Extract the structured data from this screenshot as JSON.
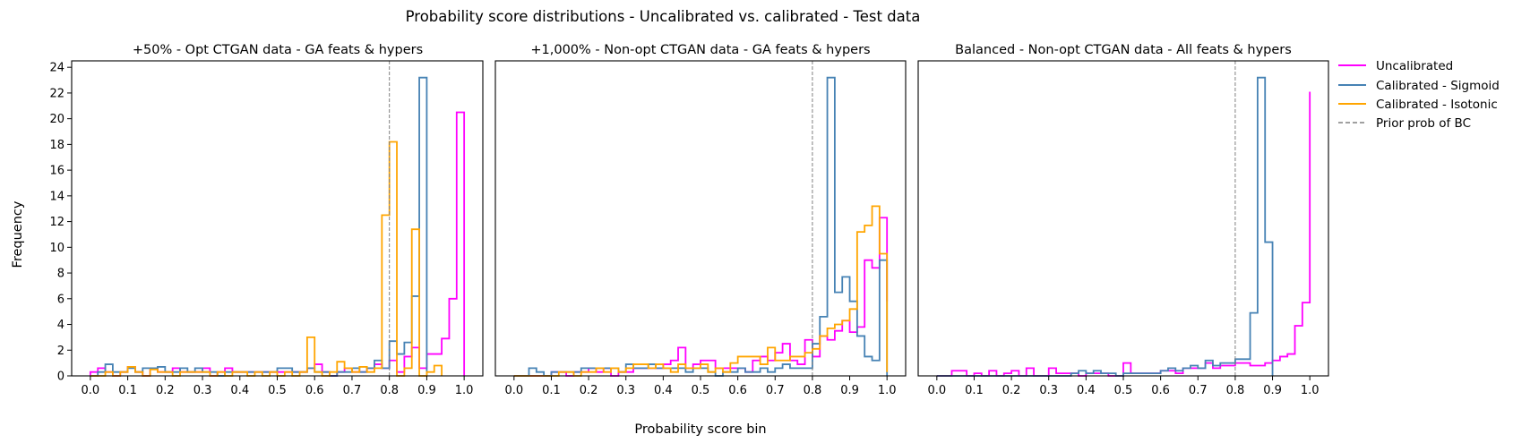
{
  "figure": {
    "title": "Probability score distributions - Uncalibrated vs. calibrated - Test data",
    "xlabel": "Probability score bin",
    "ylabel": "Frequency"
  },
  "legend": {
    "position": "outside-right",
    "entries": [
      {
        "label": "Uncalibrated",
        "color": "#ff00ff",
        "style": "solid"
      },
      {
        "label": "Calibrated - Sigmoid",
        "color": "#4682b4",
        "style": "solid"
      },
      {
        "label": "Calibrated - Isotonic",
        "color": "#ffa500",
        "style": "solid"
      },
      {
        "label": "Prior prob of BC",
        "color": "#808080",
        "style": "dashed"
      }
    ]
  },
  "chart_data": [
    {
      "type": "step-histogram",
      "title": "+50% - Opt CTGAN data - GA feats & hypers",
      "xlim": [
        -0.05,
        1.05
      ],
      "ylim": [
        0,
        24.5
      ],
      "xticks": [
        0.0,
        0.1,
        0.2,
        0.3,
        0.4,
        0.5,
        0.6,
        0.7,
        0.8,
        0.9,
        1.0
      ],
      "yticks": [
        0,
        2,
        4,
        6,
        8,
        10,
        12,
        14,
        16,
        18,
        20,
        22,
        24
      ],
      "show_yticks": true,
      "prior_line": 0.8,
      "series": [
        {
          "name": "Uncalibrated",
          "color": "#ff00ff",
          "edges": [
            0.0,
            0.02,
            0.04,
            0.06,
            0.08,
            0.1,
            0.12,
            0.14,
            0.16,
            0.18,
            0.2,
            0.22,
            0.24,
            0.26,
            0.28,
            0.3,
            0.32,
            0.34,
            0.36,
            0.38,
            0.4,
            0.42,
            0.44,
            0.46,
            0.48,
            0.5,
            0.52,
            0.54,
            0.56,
            0.58,
            0.6,
            0.62,
            0.64,
            0.66,
            0.68,
            0.7,
            0.72,
            0.74,
            0.76,
            0.78,
            0.8,
            0.82,
            0.84,
            0.86,
            0.88,
            0.9,
            0.92,
            0.94,
            0.96,
            0.98,
            1.0
          ],
          "values": [
            0.3,
            0.6,
            0.3,
            0.0,
            0.3,
            0.7,
            0.3,
            0.0,
            0.6,
            0.3,
            0.3,
            0.6,
            0.3,
            0.3,
            0.3,
            0.6,
            0.0,
            0.3,
            0.6,
            0.3,
            0.3,
            0.3,
            0.3,
            0.3,
            0.3,
            0.3,
            0.3,
            0.3,
            0.3,
            0.6,
            0.9,
            0.3,
            0.0,
            0.3,
            0.6,
            0.3,
            0.3,
            0.6,
            0.9,
            0.6,
            1.2,
            0.3,
            1.5,
            2.2,
            0.6,
            1.7,
            1.7,
            2.9,
            6.0,
            20.5
          ]
        },
        {
          "name": "Calibrated - Sigmoid",
          "color": "#4682b4",
          "edges": [
            0.0,
            0.02,
            0.04,
            0.06,
            0.08,
            0.1,
            0.12,
            0.14,
            0.16,
            0.18,
            0.2,
            0.22,
            0.24,
            0.26,
            0.28,
            0.3,
            0.32,
            0.34,
            0.36,
            0.38,
            0.4,
            0.42,
            0.44,
            0.46,
            0.48,
            0.5,
            0.52,
            0.54,
            0.56,
            0.58,
            0.6,
            0.62,
            0.64,
            0.66,
            0.68,
            0.7,
            0.72,
            0.74,
            0.76,
            0.78,
            0.8,
            0.82,
            0.84,
            0.86,
            0.88,
            0.9
          ],
          "values": [
            0.0,
            0.3,
            0.9,
            0.3,
            0.3,
            0.6,
            0.3,
            0.6,
            0.6,
            0.7,
            0.3,
            0.3,
            0.6,
            0.3,
            0.6,
            0.3,
            0.3,
            0.0,
            0.3,
            0.3,
            0.3,
            0.3,
            0.3,
            0.3,
            0.3,
            0.6,
            0.6,
            0.3,
            0.3,
            0.6,
            0.3,
            0.3,
            0.0,
            0.3,
            0.3,
            0.6,
            0.3,
            0.6,
            1.2,
            0.6,
            2.7,
            1.7,
            2.6,
            6.2,
            23.2
          ]
        },
        {
          "name": "Calibrated - Isotonic",
          "color": "#ffa500",
          "edges": [
            0.0,
            0.02,
            0.04,
            0.06,
            0.08,
            0.1,
            0.12,
            0.14,
            0.16,
            0.18,
            0.2,
            0.22,
            0.24,
            0.26,
            0.28,
            0.3,
            0.32,
            0.34,
            0.36,
            0.38,
            0.4,
            0.42,
            0.44,
            0.46,
            0.48,
            0.5,
            0.52,
            0.54,
            0.56,
            0.58,
            0.6,
            0.62,
            0.64,
            0.66,
            0.68,
            0.7,
            0.72,
            0.74,
            0.76,
            0.78,
            0.8,
            0.82,
            0.84,
            0.86,
            0.88,
            0.9,
            0.92,
            0.94
          ],
          "values": [
            0.0,
            0.0,
            0.3,
            0.0,
            0.3,
            0.7,
            0.3,
            0.0,
            0.5,
            0.3,
            0.3,
            0.0,
            0.3,
            0.3,
            0.3,
            0.3,
            0.0,
            0.3,
            0.0,
            0.3,
            0.3,
            0.0,
            0.3,
            0.0,
            0.3,
            0.0,
            0.3,
            0.0,
            0.3,
            3.0,
            0.3,
            0.0,
            0.3,
            1.1,
            0.6,
            0.3,
            0.7,
            0.3,
            0.6,
            12.5,
            18.2,
            0.0,
            0.6,
            11.4,
            0.0,
            0.3,
            0.8
          ]
        }
      ]
    },
    {
      "type": "step-histogram",
      "title": "+1,000% - Non-opt CTGAN data - GA feats & hypers",
      "xlim": [
        -0.05,
        1.05
      ],
      "ylim": [
        0,
        24.5
      ],
      "xticks": [
        0.0,
        0.1,
        0.2,
        0.3,
        0.4,
        0.5,
        0.6,
        0.7,
        0.8,
        0.9,
        1.0
      ],
      "yticks": [
        0,
        2,
        4,
        6,
        8,
        10,
        12,
        14,
        16,
        18,
        20,
        22,
        24
      ],
      "show_yticks": false,
      "prior_line": 0.8,
      "series": [
        {
          "name": "Uncalibrated",
          "color": "#ff00ff",
          "edges": [
            0.0,
            0.02,
            0.04,
            0.06,
            0.08,
            0.1,
            0.12,
            0.14,
            0.16,
            0.18,
            0.2,
            0.22,
            0.24,
            0.26,
            0.28,
            0.3,
            0.32,
            0.34,
            0.36,
            0.38,
            0.4,
            0.42,
            0.44,
            0.46,
            0.48,
            0.5,
            0.52,
            0.54,
            0.56,
            0.58,
            0.6,
            0.62,
            0.64,
            0.66,
            0.68,
            0.7,
            0.72,
            0.74,
            0.76,
            0.78,
            0.8,
            0.82,
            0.84,
            0.86,
            0.88,
            0.9,
            0.92,
            0.94,
            0.96,
            0.98,
            1.0
          ],
          "values": [
            0.0,
            0.0,
            0.0,
            0.0,
            0.0,
            0.3,
            0.3,
            0.0,
            0.3,
            0.3,
            0.6,
            0.3,
            0.6,
            0.0,
            0.3,
            0.3,
            0.6,
            0.6,
            0.6,
            0.6,
            0.9,
            1.2,
            2.2,
            0.6,
            0.9,
            1.2,
            1.2,
            0.6,
            0.6,
            0.6,
            0.6,
            0.3,
            1.2,
            1.5,
            1.2,
            1.8,
            2.5,
            1.2,
            0.9,
            2.8,
            1.5,
            3.1,
            2.8,
            3.5,
            4.3,
            3.4,
            3.8,
            9.0,
            8.4,
            12.3,
            5.8
          ]
        },
        {
          "name": "Calibrated - Sigmoid",
          "color": "#4682b4",
          "edges": [
            0.0,
            0.02,
            0.04,
            0.06,
            0.08,
            0.1,
            0.12,
            0.14,
            0.16,
            0.18,
            0.2,
            0.22,
            0.24,
            0.26,
            0.28,
            0.3,
            0.32,
            0.34,
            0.36,
            0.38,
            0.4,
            0.42,
            0.44,
            0.46,
            0.48,
            0.5,
            0.52,
            0.54,
            0.56,
            0.58,
            0.6,
            0.62,
            0.64,
            0.66,
            0.68,
            0.7,
            0.72,
            0.74,
            0.76,
            0.78,
            0.8,
            0.82,
            0.84,
            0.86,
            0.88,
            0.9,
            0.92,
            0.94,
            0.96,
            0.98,
            1.0
          ],
          "values": [
            0.0,
            0.0,
            0.6,
            0.3,
            0.0,
            0.3,
            0.3,
            0.3,
            0.3,
            0.6,
            0.6,
            0.6,
            0.6,
            0.6,
            0.3,
            0.9,
            0.6,
            0.6,
            0.9,
            0.6,
            0.6,
            0.6,
            0.6,
            0.3,
            0.6,
            0.6,
            0.3,
            0.0,
            0.3,
            0.3,
            0.6,
            0.3,
            0.3,
            0.6,
            0.3,
            0.6,
            0.9,
            0.6,
            0.6,
            0.6,
            2.5,
            4.6,
            23.2,
            6.5,
            7.7,
            5.8,
            3.1,
            1.5,
            1.2,
            9.0,
            0.0
          ]
        },
        {
          "name": "Calibrated - Isotonic",
          "color": "#ffa500",
          "edges": [
            0.0,
            0.02,
            0.04,
            0.06,
            0.08,
            0.1,
            0.12,
            0.14,
            0.16,
            0.18,
            0.2,
            0.22,
            0.24,
            0.26,
            0.28,
            0.3,
            0.32,
            0.34,
            0.36,
            0.38,
            0.4,
            0.42,
            0.44,
            0.46,
            0.48,
            0.5,
            0.52,
            0.54,
            0.56,
            0.58,
            0.6,
            0.62,
            0.64,
            0.66,
            0.68,
            0.7,
            0.72,
            0.74,
            0.76,
            0.78,
            0.8,
            0.82,
            0.84,
            0.86,
            0.88,
            0.9,
            0.92,
            0.94,
            0.96,
            0.98,
            1.0
          ],
          "values": [
            0.0,
            0.0,
            0.0,
            0.0,
            0.0,
            0.0,
            0.3,
            0.3,
            0.0,
            0.3,
            0.3,
            0.6,
            0.3,
            0.6,
            0.3,
            0.6,
            0.9,
            0.9,
            0.6,
            0.9,
            0.6,
            0.3,
            0.9,
            0.6,
            0.6,
            0.9,
            0.3,
            0.6,
            0.3,
            1.0,
            1.5,
            1.5,
            1.5,
            0.9,
            2.2,
            1.2,
            1.2,
            1.5,
            1.5,
            1.8,
            2.1,
            3.1,
            3.7,
            4.0,
            4.3,
            5.2,
            11.2,
            11.7,
            13.2,
            9.5,
            0.3
          ]
        }
      ]
    },
    {
      "type": "step-histogram",
      "title": "Balanced - Non-opt CTGAN data - All feats & hypers",
      "xlim": [
        -0.05,
        1.05
      ],
      "ylim": [
        0,
        24.5
      ],
      "xticks": [
        0.0,
        0.1,
        0.2,
        0.3,
        0.4,
        0.5,
        0.6,
        0.7,
        0.8,
        0.9,
        1.0
      ],
      "yticks": [
        0,
        2,
        4,
        6,
        8,
        10,
        12,
        14,
        16,
        18,
        20,
        22,
        24
      ],
      "show_yticks": false,
      "prior_line": 0.8,
      "series": [
        {
          "name": "Uncalibrated",
          "color": "#ff00ff",
          "edges": [
            0.0,
            0.02,
            0.04,
            0.06,
            0.08,
            0.1,
            0.12,
            0.14,
            0.16,
            0.18,
            0.2,
            0.22,
            0.24,
            0.26,
            0.28,
            0.3,
            0.32,
            0.34,
            0.36,
            0.38,
            0.4,
            0.42,
            0.44,
            0.46,
            0.48,
            0.5,
            0.52,
            0.54,
            0.56,
            0.58,
            0.6,
            0.62,
            0.64,
            0.66,
            0.68,
            0.7,
            0.72,
            0.74,
            0.76,
            0.78,
            0.8,
            0.82,
            0.84,
            0.86,
            0.88,
            0.9,
            0.92,
            0.94,
            0.96,
            0.98,
            1.0
          ],
          "values": [
            0.0,
            0.0,
            0.4,
            0.4,
            0.0,
            0.2,
            0.0,
            0.4,
            0.0,
            0.2,
            0.4,
            0.0,
            0.6,
            0.0,
            0.0,
            0.6,
            0.2,
            0.2,
            0.2,
            0.0,
            0.2,
            0.2,
            0.2,
            0.0,
            0.0,
            1.0,
            0.2,
            0.2,
            0.2,
            0.2,
            0.4,
            0.4,
            0.2,
            0.6,
            0.6,
            0.6,
            1.0,
            0.6,
            0.8,
            0.8,
            1.0,
            1.0,
            0.8,
            0.8,
            1.0,
            1.2,
            1.5,
            1.7,
            3.9,
            5.7,
            22.1
          ]
        },
        {
          "name": "Calibrated - Sigmoid",
          "color": "#4682b4",
          "edges": [
            0.0,
            0.02,
            0.04,
            0.06,
            0.08,
            0.1,
            0.12,
            0.14,
            0.16,
            0.18,
            0.2,
            0.22,
            0.24,
            0.26,
            0.28,
            0.3,
            0.32,
            0.34,
            0.36,
            0.38,
            0.4,
            0.42,
            0.44,
            0.46,
            0.48,
            0.5,
            0.52,
            0.54,
            0.56,
            0.58,
            0.6,
            0.62,
            0.64,
            0.66,
            0.68,
            0.7,
            0.72,
            0.74,
            0.76,
            0.78,
            0.8,
            0.82,
            0.84,
            0.86,
            0.88,
            0.9
          ],
          "values": [
            0.0,
            0.0,
            0.0,
            0.0,
            0.0,
            0.0,
            0.0,
            0.0,
            0.0,
            0.0,
            0.0,
            0.0,
            0.0,
            0.0,
            0.0,
            0.0,
            0.0,
            0.0,
            0.2,
            0.4,
            0.2,
            0.4,
            0.2,
            0.2,
            0.0,
            0.2,
            0.2,
            0.2,
            0.2,
            0.2,
            0.4,
            0.6,
            0.4,
            0.6,
            0.8,
            0.6,
            1.2,
            0.8,
            1.0,
            1.0,
            1.3,
            1.3,
            4.9,
            23.2,
            10.4
          ]
        }
      ]
    }
  ]
}
